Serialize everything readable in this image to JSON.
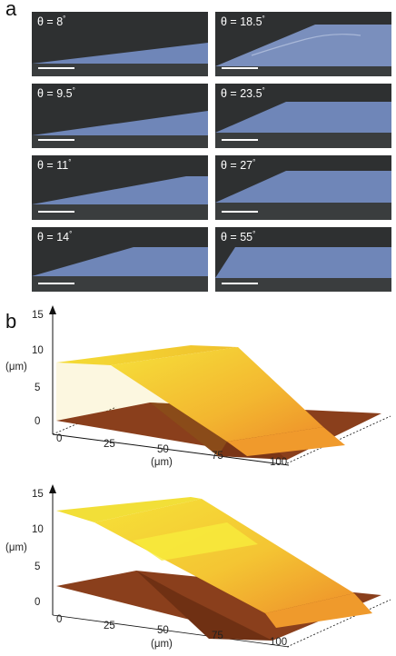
{
  "panel_a": {
    "letter": "a",
    "images": [
      {
        "label": "θ = 8",
        "degree_sign": "°",
        "angle_deg": 8
      },
      {
        "label": "θ = 18.5",
        "degree_sign": "°",
        "angle_deg": 18.5
      },
      {
        "label": "θ = 9.5",
        "degree_sign": "°",
        "angle_deg": 9.5
      },
      {
        "label": "θ = 23.5",
        "degree_sign": "°",
        "angle_deg": 23.5
      },
      {
        "label": "θ = 11",
        "degree_sign": "°",
        "angle_deg": 11
      },
      {
        "label": "θ = 27",
        "degree_sign": "°",
        "angle_deg": 27
      },
      {
        "label": "θ = 14",
        "degree_sign": "°",
        "angle_deg": 14
      },
      {
        "label": "θ = 55",
        "degree_sign": "°",
        "angle_deg": 55
      }
    ],
    "colors": {
      "background": "#2e3031",
      "film": "#6f86b8",
      "substrate": "#3a3d3e"
    }
  },
  "panel_b": {
    "letter": "b",
    "plots": [
      {
        "z_ticks": [
          "15",
          "10",
          "5",
          "0"
        ],
        "z_unit": "(μm)",
        "x_ticks": [
          "0",
          "25",
          "50",
          "75",
          "100"
        ],
        "x_unit": "(μm)"
      },
      {
        "z_ticks": [
          "15",
          "10",
          "5",
          "0"
        ],
        "z_unit": "(μm)",
        "x_ticks": [
          "0",
          "25",
          "50",
          "75",
          "100"
        ],
        "x_unit": "(μm)"
      }
    ],
    "colors": {
      "surface_top": "#f2e23a",
      "surface_side": "#f0a030",
      "base": "#8a3f1c"
    }
  }
}
